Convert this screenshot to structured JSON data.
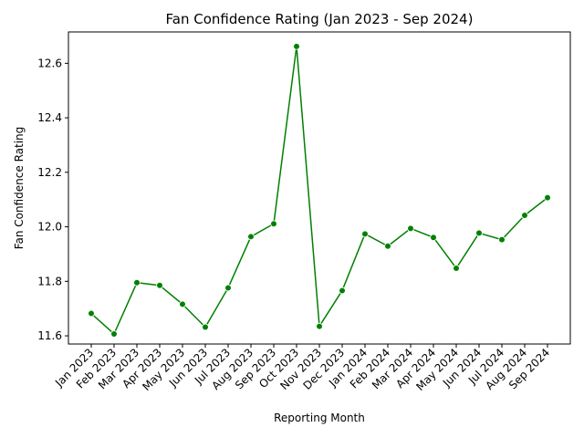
{
  "chart_data": {
    "type": "line",
    "title": "Fan Confidence Rating (Jan 2023 - Sep 2024)",
    "xlabel": "Reporting Month",
    "ylabel": "Fan Confidence Rating",
    "categories": [
      "Jan 2023",
      "Feb 2023",
      "Mar 2023",
      "Apr 2023",
      "May 2023",
      "Jun 2023",
      "Jul 2023",
      "Aug 2023",
      "Sep 2023",
      "Oct 2023",
      "Nov 2023",
      "Dec 2023",
      "Jan 2024",
      "Feb 2024",
      "Mar 2024",
      "Apr 2024",
      "May 2024",
      "Jun 2024",
      "Jul 2024",
      "Aug 2024",
      "Sep 2024"
    ],
    "values": [
      11.682,
      11.607,
      11.795,
      11.785,
      11.716,
      11.632,
      11.776,
      11.964,
      12.011,
      12.662,
      11.635,
      11.766,
      11.974,
      11.929,
      11.994,
      11.961,
      11.848,
      11.977,
      11.953,
      12.042,
      12.107
    ],
    "yticks": [
      11.6,
      11.8,
      12.0,
      12.2,
      12.4,
      12.6
    ],
    "ytick_labels": [
      "11.6",
      "11.8",
      "12.0",
      "12.2",
      "12.4",
      "12.6"
    ],
    "ylim": [
      11.57,
      12.715
    ],
    "line_color": "#008000",
    "marker_color": "#008000",
    "grid": false,
    "legend": false
  }
}
